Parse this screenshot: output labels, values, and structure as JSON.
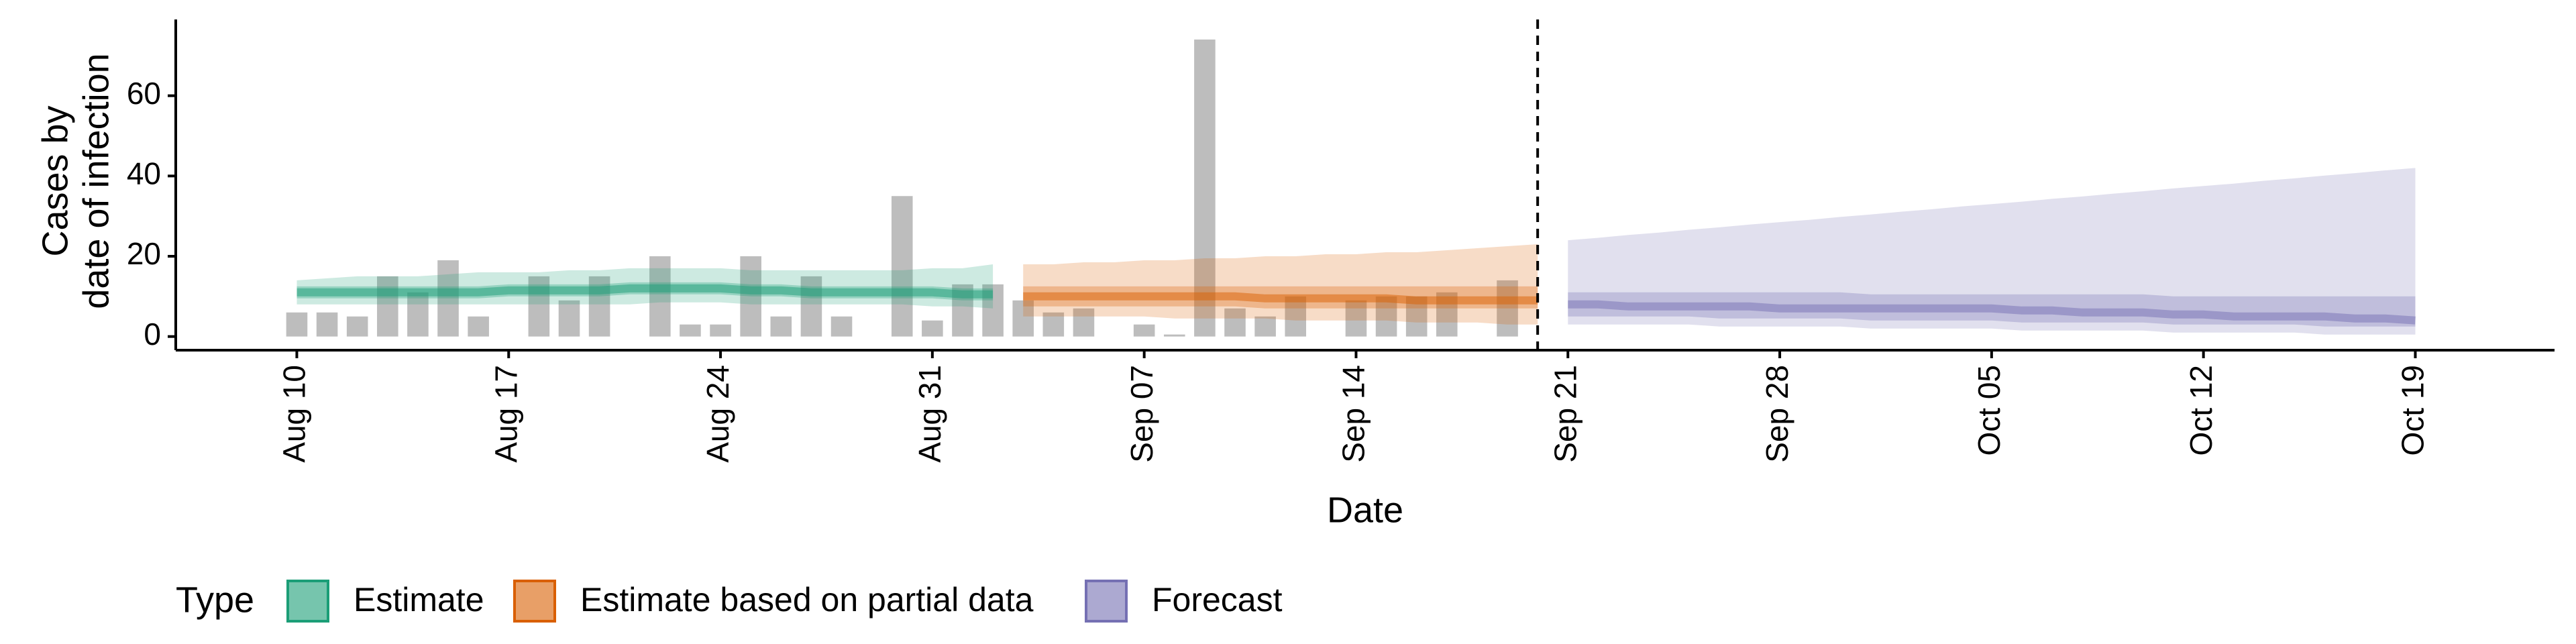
{
  "chart_data": {
    "type": "band",
    "x_label": "Date",
    "y_label": [
      "Cases by",
      "date of infection"
    ],
    "legend_title": "Type",
    "categories": [
      "Aug 10",
      null,
      null,
      null,
      null,
      null,
      null,
      "Aug 17",
      null,
      null,
      null,
      null,
      null,
      null,
      "Aug 24",
      null,
      null,
      null,
      null,
      null,
      null,
      "Aug 31",
      null,
      null,
      null,
      null,
      null,
      null,
      "Sep 07",
      null,
      null,
      null,
      null,
      null,
      null,
      "Sep 14",
      null,
      null,
      null,
      null,
      null,
      null,
      "Sep 21",
      null,
      null,
      null,
      null,
      null,
      null,
      "Sep 28",
      null,
      null,
      null,
      null,
      null,
      null,
      "Oct 05",
      null,
      null,
      null,
      null,
      null,
      null,
      "Oct 12",
      null,
      null,
      null,
      null,
      null,
      null,
      "Oct 19"
    ],
    "ylim": [
      -3.4,
      79
    ],
    "yticks": [
      0,
      20,
      40,
      60
    ],
    "grid": false,
    "legend": "bottom",
    "bars": {
      "color": "#bdbdbd",
      "values": [
        6,
        6,
        5,
        15,
        11,
        19,
        5,
        0,
        15,
        9,
        15,
        0,
        20,
        3,
        3,
        20,
        5,
        15,
        5,
        0,
        35,
        4,
        13,
        13,
        9,
        6,
        7,
        0,
        3,
        0.5,
        74,
        7,
        5,
        10,
        0,
        9,
        10,
        10,
        11,
        0,
        14,
        null,
        null,
        null,
        null,
        null,
        null,
        null,
        null,
        null,
        null,
        null,
        null,
        null,
        null,
        null,
        null,
        null,
        null,
        null,
        null,
        null,
        null,
        null,
        null,
        null,
        null,
        null,
        null,
        null,
        null
      ]
    },
    "series": [
      {
        "name": "Estimate",
        "color": "#1b9e77",
        "values": [
          11,
          11,
          11,
          11,
          11,
          11,
          11,
          11.5,
          11.5,
          11.5,
          11.5,
          12,
          12,
          12,
          12,
          11.5,
          11.5,
          11,
          11,
          11,
          11,
          11,
          10.5,
          10.5,
          null,
          null,
          null,
          null,
          null,
          null,
          null,
          null,
          null,
          null,
          null,
          null,
          null,
          null,
          null,
          null,
          null,
          null,
          null,
          null,
          null,
          null,
          null,
          null,
          null,
          null,
          null,
          null,
          null,
          null,
          null,
          null,
          null,
          null,
          null,
          null,
          null,
          null,
          null,
          null,
          null,
          null,
          null,
          null,
          null,
          null,
          null
        ],
        "lower_50": [
          9.5,
          9.5,
          9.5,
          9.5,
          9.5,
          9.5,
          9.5,
          10,
          10,
          10,
          10,
          10.5,
          10.5,
          10.5,
          10.5,
          10,
          10,
          9.5,
          9.5,
          9.5,
          9.5,
          9.5,
          9,
          9,
          null,
          null,
          null,
          null,
          null,
          null,
          null,
          null,
          null,
          null,
          null,
          null,
          null,
          null,
          null,
          null,
          null,
          null,
          null,
          null,
          null,
          null,
          null,
          null,
          null,
          null,
          null,
          null,
          null,
          null,
          null,
          null,
          null,
          null,
          null,
          null,
          null,
          null,
          null,
          null,
          null,
          null,
          null,
          null,
          null,
          null,
          null
        ],
        "upper_50": [
          12.5,
          12.5,
          12.5,
          12.5,
          12.5,
          12.5,
          12.5,
          13,
          13,
          13,
          13,
          13.5,
          13.5,
          13.5,
          13.5,
          13,
          13,
          12.5,
          12.5,
          12.5,
          12.5,
          12.5,
          12,
          12,
          null,
          null,
          null,
          null,
          null,
          null,
          null,
          null,
          null,
          null,
          null,
          null,
          null,
          null,
          null,
          null,
          null,
          null,
          null,
          null,
          null,
          null,
          null,
          null,
          null,
          null,
          null,
          null,
          null,
          null,
          null,
          null,
          null,
          null,
          null,
          null,
          null,
          null,
          null,
          null,
          null,
          null,
          null,
          null,
          null,
          null,
          null
        ],
        "lower_90": [
          8,
          8,
          8,
          8,
          8,
          8,
          8,
          8,
          8,
          8,
          8,
          8,
          8.5,
          8.5,
          8.5,
          8,
          8,
          8,
          8,
          8,
          8,
          7.5,
          7.5,
          7,
          null,
          null,
          null,
          null,
          null,
          null,
          null,
          null,
          null,
          null,
          null,
          null,
          null,
          null,
          null,
          null,
          null,
          null,
          null,
          null,
          null,
          null,
          null,
          null,
          null,
          null,
          null,
          null,
          null,
          null,
          null,
          null,
          null,
          null,
          null,
          null,
          null,
          null,
          null,
          null,
          null,
          null,
          null,
          null,
          null,
          null,
          null
        ],
        "upper_90": [
          14,
          14.5,
          15,
          15,
          15,
          15.5,
          16,
          16,
          16,
          16.5,
          16.5,
          17,
          17,
          17,
          17,
          16.5,
          16.5,
          16.5,
          16.5,
          16.5,
          16.5,
          17,
          17,
          18,
          null,
          null,
          null,
          null,
          null,
          null,
          null,
          null,
          null,
          null,
          null,
          null,
          null,
          null,
          null,
          null,
          null,
          null,
          null,
          null,
          null,
          null,
          null,
          null,
          null,
          null,
          null,
          null,
          null,
          null,
          null,
          null,
          null,
          null,
          null,
          null,
          null,
          null,
          null,
          null,
          null,
          null,
          null,
          null,
          null,
          null,
          null
        ]
      },
      {
        "name": "Estimate based on partial data",
        "color": "#d95f02",
        "values": [
          null,
          null,
          null,
          null,
          null,
          null,
          null,
          null,
          null,
          null,
          null,
          null,
          null,
          null,
          null,
          null,
          null,
          null,
          null,
          null,
          null,
          null,
          null,
          null,
          10,
          10,
          10,
          10,
          10,
          10,
          10,
          10,
          9.5,
          9.5,
          9.5,
          9.5,
          9.5,
          9,
          9,
          9,
          9,
          9,
          null,
          null,
          null,
          null,
          null,
          null,
          null,
          null,
          null,
          null,
          null,
          null,
          null,
          null,
          null,
          null,
          null,
          null,
          null,
          null,
          null,
          null,
          null,
          null,
          null,
          null,
          null,
          null,
          null
        ],
        "lower_50": [
          null,
          null,
          null,
          null,
          null,
          null,
          null,
          null,
          null,
          null,
          null,
          null,
          null,
          null,
          null,
          null,
          null,
          null,
          null,
          null,
          null,
          null,
          null,
          null,
          7.5,
          7.5,
          7.5,
          7.5,
          7.5,
          7.5,
          7.5,
          7.5,
          7,
          7,
          7,
          7,
          7,
          7,
          7,
          7,
          7,
          7,
          null,
          null,
          null,
          null,
          null,
          null,
          null,
          null,
          null,
          null,
          null,
          null,
          null,
          null,
          null,
          null,
          null,
          null,
          null,
          null,
          null,
          null,
          null,
          null,
          null,
          null,
          null,
          null,
          null
        ],
        "upper_50": [
          null,
          null,
          null,
          null,
          null,
          null,
          null,
          null,
          null,
          null,
          null,
          null,
          null,
          null,
          null,
          null,
          null,
          null,
          null,
          null,
          null,
          null,
          null,
          null,
          12.5,
          12.5,
          12.5,
          12.5,
          12.5,
          12.5,
          12.5,
          12.5,
          12.5,
          12.5,
          12.5,
          12.5,
          12.5,
          12.5,
          12.5,
          12.5,
          12.5,
          12.5,
          null,
          null,
          null,
          null,
          null,
          null,
          null,
          null,
          null,
          null,
          null,
          null,
          null,
          null,
          null,
          null,
          null,
          null,
          null,
          null,
          null,
          null,
          null,
          null,
          null,
          null,
          null,
          null,
          null
        ],
        "lower_90": [
          null,
          null,
          null,
          null,
          null,
          null,
          null,
          null,
          null,
          null,
          null,
          null,
          null,
          null,
          null,
          null,
          null,
          null,
          null,
          null,
          null,
          null,
          null,
          null,
          5,
          5,
          5,
          5,
          5,
          4.5,
          4.5,
          4.5,
          4.5,
          4,
          4,
          4,
          4,
          3.5,
          3.5,
          3.5,
          3,
          3,
          null,
          null,
          null,
          null,
          null,
          null,
          null,
          null,
          null,
          null,
          null,
          null,
          null,
          null,
          null,
          null,
          null,
          null,
          null,
          null,
          null,
          null,
          null,
          null,
          null,
          null,
          null,
          null,
          null
        ],
        "upper_90": [
          null,
          null,
          null,
          null,
          null,
          null,
          null,
          null,
          null,
          null,
          null,
          null,
          null,
          null,
          null,
          null,
          null,
          null,
          null,
          null,
          null,
          null,
          null,
          null,
          18,
          18,
          18.5,
          18.5,
          19,
          19,
          19.5,
          19.5,
          20,
          20,
          20.5,
          20.5,
          21,
          21,
          21.5,
          22,
          22.5,
          23,
          null,
          null,
          null,
          null,
          null,
          null,
          null,
          null,
          null,
          null,
          null,
          null,
          null,
          null,
          null,
          null,
          null,
          null,
          null,
          null,
          null,
          null,
          null,
          null,
          null,
          null,
          null,
          null,
          null
        ]
      },
      {
        "name": "Forecast",
        "color": "#7570b3",
        "values": [
          null,
          null,
          null,
          null,
          null,
          null,
          null,
          null,
          null,
          null,
          null,
          null,
          null,
          null,
          null,
          null,
          null,
          null,
          null,
          null,
          null,
          null,
          null,
          null,
          null,
          null,
          null,
          null,
          null,
          null,
          null,
          null,
          null,
          null,
          null,
          null,
          null,
          null,
          null,
          null,
          null,
          null,
          8,
          8,
          7.5,
          7.5,
          7.5,
          7.5,
          7.5,
          7,
          7,
          7,
          7,
          7,
          7,
          7,
          7,
          6.5,
          6.5,
          6,
          6,
          6,
          5.5,
          5.5,
          5,
          5,
          5,
          5,
          4.5,
          4.5,
          4
        ],
        "lower_50": [
          null,
          null,
          null,
          null,
          null,
          null,
          null,
          null,
          null,
          null,
          null,
          null,
          null,
          null,
          null,
          null,
          null,
          null,
          null,
          null,
          null,
          null,
          null,
          null,
          null,
          null,
          null,
          null,
          null,
          null,
          null,
          null,
          null,
          null,
          null,
          null,
          null,
          null,
          null,
          null,
          null,
          null,
          5,
          5,
          5,
          5,
          5,
          4.5,
          4.5,
          4.5,
          4.5,
          4.5,
          4,
          4,
          4,
          4,
          4,
          3.5,
          3.5,
          3.5,
          3.5,
          3.5,
          3,
          3,
          3,
          3,
          3,
          2.5,
          2.5,
          2.5,
          2.5
        ],
        "upper_50": [
          null,
          null,
          null,
          null,
          null,
          null,
          null,
          null,
          null,
          null,
          null,
          null,
          null,
          null,
          null,
          null,
          null,
          null,
          null,
          null,
          null,
          null,
          null,
          null,
          null,
          null,
          null,
          null,
          null,
          null,
          null,
          null,
          null,
          null,
          null,
          null,
          null,
          null,
          null,
          null,
          null,
          null,
          11,
          11,
          11,
          11,
          11,
          11,
          11,
          11,
          11,
          11,
          10.5,
          10.5,
          10.5,
          10.5,
          10.5,
          10.5,
          10.5,
          10.5,
          10.5,
          10.5,
          10,
          10,
          10,
          10,
          10,
          10,
          10,
          10,
          10
        ],
        "lower_90": [
          null,
          null,
          null,
          null,
          null,
          null,
          null,
          null,
          null,
          null,
          null,
          null,
          null,
          null,
          null,
          null,
          null,
          null,
          null,
          null,
          null,
          null,
          null,
          null,
          null,
          null,
          null,
          null,
          null,
          null,
          null,
          null,
          null,
          null,
          null,
          null,
          null,
          null,
          null,
          null,
          null,
          null,
          3,
          3,
          3,
          3,
          3,
          2.5,
          2.5,
          2.5,
          2.5,
          2.5,
          2,
          2,
          2,
          2,
          2,
          1.5,
          1.5,
          1.5,
          1.5,
          1.5,
          1,
          1,
          1,
          1,
          1,
          0.5,
          0.5,
          0.5,
          0.5
        ],
        "upper_90": [
          null,
          null,
          null,
          null,
          null,
          null,
          null,
          null,
          null,
          null,
          null,
          null,
          null,
          null,
          null,
          null,
          null,
          null,
          null,
          null,
          null,
          null,
          null,
          null,
          null,
          null,
          null,
          null,
          null,
          null,
          null,
          null,
          null,
          null,
          null,
          null,
          null,
          null,
          null,
          null,
          null,
          null,
          24,
          24.6,
          25.3,
          25.9,
          26.6,
          27.2,
          27.9,
          28.5,
          29.1,
          29.8,
          30.4,
          31.1,
          31.7,
          32.4,
          33,
          33.6,
          34.3,
          34.9,
          35.6,
          36.2,
          36.9,
          37.5,
          38.1,
          38.8,
          39.4,
          40.1,
          40.7,
          41.4,
          42
        ]
      }
    ]
  }
}
